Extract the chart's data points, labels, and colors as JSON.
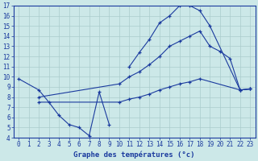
{
  "bg_color": "#cce8e8",
  "grid_color": "#aacccc",
  "line_color": "#1a3a9e",
  "xlabel": "Graphe des températures (°c)",
  "xlim": [
    -0.5,
    23.5
  ],
  "ylim": [
    4,
    17
  ],
  "yticks": [
    4,
    5,
    6,
    7,
    8,
    9,
    10,
    11,
    12,
    13,
    14,
    15,
    16,
    17
  ],
  "xticks": [
    0,
    1,
    2,
    3,
    4,
    5,
    6,
    7,
    8,
    9,
    10,
    11,
    12,
    13,
    14,
    15,
    16,
    17,
    18,
    19,
    20,
    21,
    22,
    23
  ],
  "line1_seg1_x": [
    0,
    2,
    3,
    4,
    5,
    6,
    7,
    8,
    9
  ],
  "line1_seg1_y": [
    9.8,
    8.7,
    7.5,
    6.2,
    5.3,
    5.0,
    4.2,
    8.5,
    5.3
  ],
  "line1_seg2_x": [
    11,
    12,
    13,
    14,
    15,
    16,
    17,
    18,
    19,
    22,
    23
  ],
  "line1_seg2_y": [
    11.0,
    12.4,
    13.7,
    15.3,
    16.0,
    17.0,
    17.0,
    16.5,
    15.0,
    8.7,
    8.8
  ],
  "line2_x": [
    2,
    10,
    11,
    12,
    13,
    14,
    15,
    16,
    17,
    18,
    19,
    20,
    21,
    22,
    23
  ],
  "line2_y": [
    8.0,
    9.3,
    10.0,
    10.5,
    11.2,
    12.0,
    13.0,
    13.5,
    14.0,
    14.5,
    13.0,
    12.5,
    11.8,
    8.7,
    8.8
  ],
  "line3_x": [
    2,
    10,
    11,
    12,
    13,
    14,
    15,
    16,
    17,
    18,
    22,
    23
  ],
  "line3_y": [
    7.5,
    7.5,
    7.8,
    8.0,
    8.3,
    8.7,
    9.0,
    9.3,
    9.5,
    9.8,
    8.7,
    8.8
  ],
  "tick_fontsize": 5.5,
  "xlabel_fontsize": 6.5
}
